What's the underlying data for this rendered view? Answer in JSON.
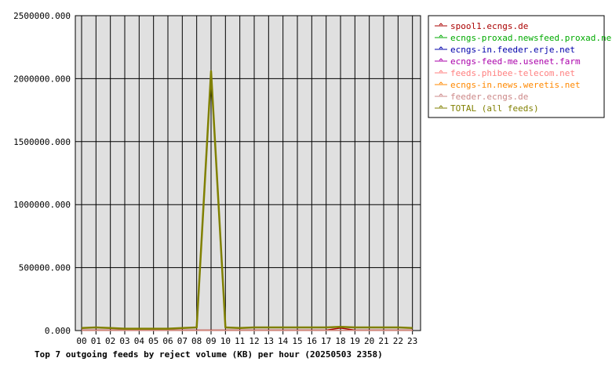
{
  "colors": {
    "plot_background": "#e0e0e0",
    "grid": "#000000"
  },
  "chart_data": {
    "type": "line",
    "title": "Top 7 outgoing feeds by reject volume (KB) per hour (20250503 2358)",
    "xlabel": "",
    "ylabel": "",
    "categories": [
      "00",
      "01",
      "02",
      "03",
      "04",
      "05",
      "06",
      "07",
      "08",
      "09",
      "10",
      "11",
      "12",
      "13",
      "14",
      "15",
      "16",
      "17",
      "18",
      "19",
      "20",
      "21",
      "22",
      "23"
    ],
    "y_ticks": [
      "0.000",
      "500000.000",
      "1000000.000",
      "1500000.000",
      "2000000.000",
      "2500000.000"
    ],
    "ylim": [
      0,
      2500000
    ],
    "grid": true,
    "legend_position": "right",
    "series": [
      {
        "name": "spool1.ecngs.de",
        "color": "#aa0000",
        "values": [
          3000,
          3000,
          3000,
          3000,
          3000,
          3000,
          3000,
          3000,
          3000,
          3000,
          3000,
          3000,
          3000,
          3000,
          3000,
          3000,
          3000,
          3000,
          20000,
          3000,
          3000,
          3000,
          3000,
          3000
        ]
      },
      {
        "name": "ecngs-proxad.newsfeed.proxad.net",
        "color": "#00aa00",
        "values": [
          2000,
          2000,
          2000,
          2000,
          2000,
          2000,
          2000,
          2000,
          2000,
          2000,
          2000,
          2000,
          2000,
          2000,
          2000,
          2000,
          2000,
          2000,
          2000,
          2000,
          2000,
          2000,
          2000,
          2000
        ]
      },
      {
        "name": "ecngs-in.feeder.erje.net",
        "color": "#0000aa",
        "values": [
          1000,
          1000,
          1000,
          1000,
          1000,
          1000,
          1000,
          1000,
          1000,
          1000,
          1000,
          1000,
          1000,
          1000,
          1000,
          1000,
          1000,
          1000,
          1000,
          1000,
          1000,
          1000,
          1000,
          1000
        ]
      },
      {
        "name": "ecngs-feed-me.usenet.farm",
        "color": "#aa00aa",
        "values": [
          1000,
          1000,
          1000,
          1000,
          1000,
          1000,
          1000,
          1000,
          1000,
          1000,
          1000,
          1000,
          1000,
          1000,
          1000,
          1000,
          1000,
          1000,
          1000,
          1000,
          1000,
          1000,
          1000,
          1000
        ]
      },
      {
        "name": "feeds.phibee-telecom.net",
        "color": "#ff8080",
        "values": [
          1000,
          1000,
          1000,
          1000,
          1000,
          1000,
          1000,
          1000,
          1000,
          1000,
          1000,
          1000,
          1000,
          1000,
          1000,
          1000,
          1000,
          1000,
          1000,
          1000,
          1000,
          1000,
          1000,
          1000
        ]
      },
      {
        "name": "ecngs-in.news.weretis.net",
        "color": "#ff8800",
        "values": [
          1000,
          1000,
          1000,
          1000,
          1000,
          1000,
          1000,
          1000,
          1000,
          1000,
          1000,
          1000,
          1000,
          1000,
          1000,
          1000,
          1000,
          1000,
          1000,
          1000,
          1000,
          1000,
          1000,
          1000
        ]
      },
      {
        "name": "feeder.ecngs.de",
        "color": "#cc8888",
        "values": [
          500,
          500,
          500,
          500,
          500,
          500,
          500,
          500,
          500,
          500,
          500,
          500,
          500,
          500,
          500,
          500,
          500,
          500,
          500,
          500,
          500,
          500,
          500,
          500
        ]
      },
      {
        "name": "TOTAL (all feeds)",
        "color": "#808000",
        "values": [
          20000,
          25000,
          20000,
          15000,
          15000,
          15000,
          15000,
          20000,
          25000,
          2060000,
          25000,
          20000,
          25000,
          25000,
          25000,
          25000,
          25000,
          25000,
          30000,
          25000,
          25000,
          25000,
          25000,
          20000
        ]
      }
    ]
  }
}
